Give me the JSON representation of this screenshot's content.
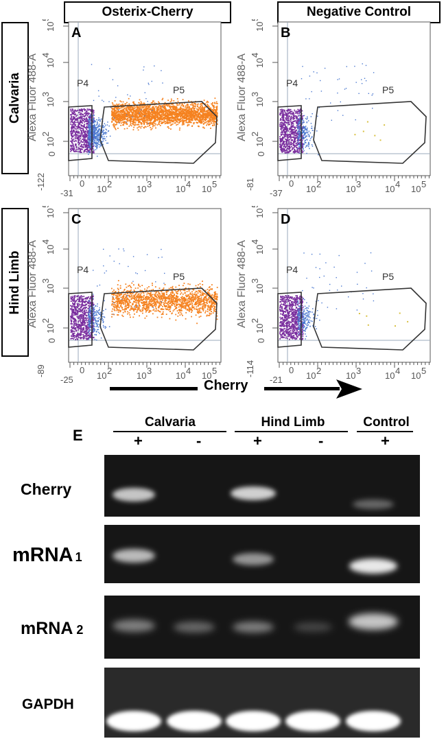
{
  "columns": [
    "Osterix-Cherry",
    "Negative Control"
  ],
  "rows": [
    "Calvaria",
    "Hind Limb"
  ],
  "flow": {
    "y_axis_title": "Alexa Fluor 488-A",
    "x_axis_title": "Cherry",
    "gates": [
      "P4",
      "P5"
    ],
    "y_ticks": [
      "10",
      "10",
      "10",
      "10"
    ],
    "y_exps": [
      "2",
      "3",
      "4",
      "5"
    ],
    "x_ticks": [
      "10",
      "10",
      "10",
      "10"
    ],
    "x_exps": [
      "2",
      "3",
      "4",
      "5"
    ],
    "x_zero": "0",
    "y_zero": "0",
    "panels": [
      {
        "letter": "A",
        "x_min": "-31",
        "y_min": "-122"
      },
      {
        "letter": "B",
        "x_min": "-37",
        "y_min": "-81"
      },
      {
        "letter": "C",
        "x_min": "-25",
        "y_min": "-89"
      },
      {
        "letter": "D",
        "x_min": "-21",
        "y_min": "-114"
      }
    ]
  },
  "gel": {
    "letter": "E",
    "groups": [
      {
        "name": "Calvaria",
        "signs": [
          "+",
          "-"
        ]
      },
      {
        "name": "Hind Limb",
        "signs": [
          "+",
          "-"
        ]
      },
      {
        "name": "Control",
        "signs": [
          "+"
        ]
      }
    ],
    "rows": [
      {
        "label": "Cherry",
        "sub": ""
      },
      {
        "label": "mRNA",
        "sub": "1"
      },
      {
        "label": "mRNA",
        "sub": "2"
      },
      {
        "label": "GAPDH",
        "sub": ""
      }
    ]
  },
  "colors": {
    "positive_events": "#f58220",
    "negative_events": "#7a2e9e",
    "mixed_events": "#4a78d0"
  }
}
